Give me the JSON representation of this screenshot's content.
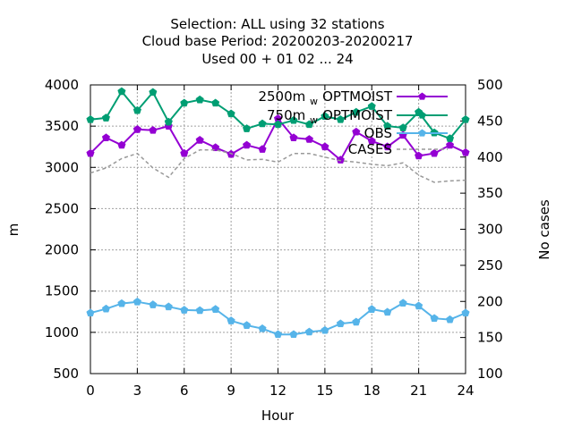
{
  "title_lines": [
    "Selection: ALL using    32 stations",
    "Cloud base   Period: 20200203-20200217",
    "Used  00 + 01 02 ... 24"
  ],
  "colors": {
    "opt2500": "#9400d3",
    "opt750": "#009e73",
    "obs": "#56b4e9",
    "cases": "#999999",
    "grid": "#a0a0a0",
    "frame": "#000000"
  },
  "chart_data": {
    "type": "line",
    "title": "Selection: ALL using    32 stations / Cloud base   Period: 20200203-20200217 / Used  00 + 01 02 ... 24",
    "xlabel": "Hour",
    "ylabel": "m",
    "y2label": "No cases",
    "xlim": [
      0,
      24
    ],
    "ylim": [
      500,
      4000
    ],
    "y2lim": [
      100,
      500
    ],
    "xticks": [
      0,
      3,
      6,
      9,
      12,
      15,
      18,
      21,
      24
    ],
    "yticks": [
      500,
      1000,
      1500,
      2000,
      2500,
      3000,
      3500,
      4000
    ],
    "y2ticks": [
      100,
      150,
      200,
      250,
      300,
      350,
      400,
      450,
      500
    ],
    "grid": true,
    "legend_position": "top-right",
    "x": [
      0,
      1,
      2,
      3,
      4,
      5,
      6,
      7,
      8,
      9,
      10,
      11,
      12,
      13,
      14,
      15,
      16,
      17,
      18,
      19,
      20,
      21,
      22,
      23,
      24
    ],
    "series": [
      {
        "name": "2500m",
        "name_sub": "w",
        "name_suffix": "OPTMOIST",
        "color_key": "opt2500",
        "axis": "left",
        "style": "line-points",
        "values": [
          3170,
          3360,
          3270,
          3460,
          3450,
          3500,
          3170,
          3330,
          3240,
          3160,
          3270,
          3220,
          3590,
          3360,
          3340,
          3250,
          3090,
          3430,
          3320,
          3250,
          3390,
          3140,
          3170,
          3270,
          3180
        ]
      },
      {
        "name": "750m",
        "name_sub": "w",
        "name_suffix": "OPTMOIST",
        "color_key": "opt750",
        "axis": "left",
        "style": "line-points",
        "values": [
          3580,
          3600,
          3920,
          3690,
          3910,
          3550,
          3780,
          3820,
          3780,
          3650,
          3470,
          3530,
          3520,
          3570,
          3520,
          3620,
          3580,
          3670,
          3740,
          3500,
          3480,
          3670,
          3420,
          3350,
          3580
        ]
      },
      {
        "name": "OBS",
        "color_key": "obs",
        "axis": "left",
        "style": "line-points",
        "values": [
          1235,
          1285,
          1350,
          1370,
          1335,
          1310,
          1270,
          1265,
          1280,
          1140,
          1085,
          1045,
          975,
          975,
          1005,
          1025,
          1105,
          1125,
          1280,
          1245,
          1355,
          1320,
          1170,
          1155,
          1235
        ]
      },
      {
        "name": "CASES",
        "color_key": "cases",
        "axis": "right",
        "style": "dashed",
        "values": [
          378,
          385,
          398,
          405,
          385,
          372,
          398,
          410,
          410,
          405,
          396,
          397,
          393,
          405,
          405,
          400,
          395,
          393,
          390,
          388,
          392,
          375,
          365,
          367,
          368
        ]
      }
    ]
  }
}
